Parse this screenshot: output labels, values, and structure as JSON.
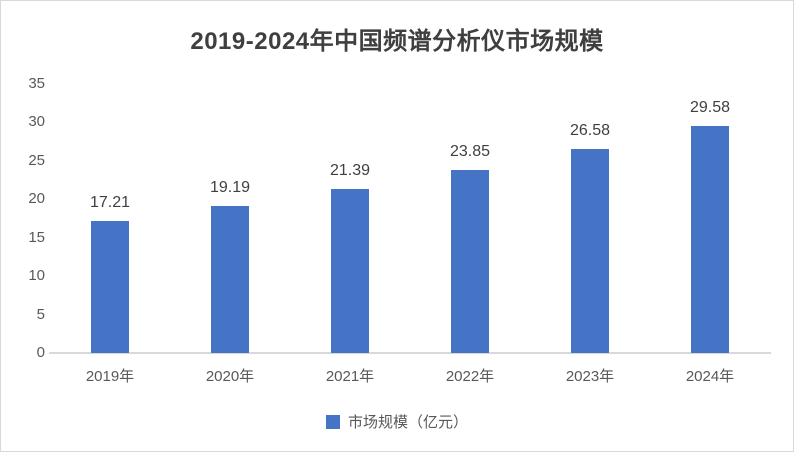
{
  "chart_data": {
    "type": "bar",
    "title": "2019-2024年中国频谱分析仪市场规模",
    "categories": [
      "2019年",
      "2020年",
      "2021年",
      "2022年",
      "2023年",
      "2024年"
    ],
    "values": [
      17.21,
      19.19,
      21.39,
      23.85,
      26.58,
      29.58
    ],
    "series_name": "市场规模（亿元）",
    "xlabel": "",
    "ylabel": "",
    "ylim": [
      0,
      35
    ],
    "yticks": [
      0,
      5,
      10,
      15,
      20,
      25,
      30,
      35
    ],
    "grid": false,
    "data_labels": true,
    "legend_position": "bottom",
    "bar_color": "#4574C6",
    "axis_line_color": "#d9d9d9",
    "axis_text_color": "#595959",
    "data_label_color": "#404040",
    "title_color": "#3f3f3f"
  }
}
